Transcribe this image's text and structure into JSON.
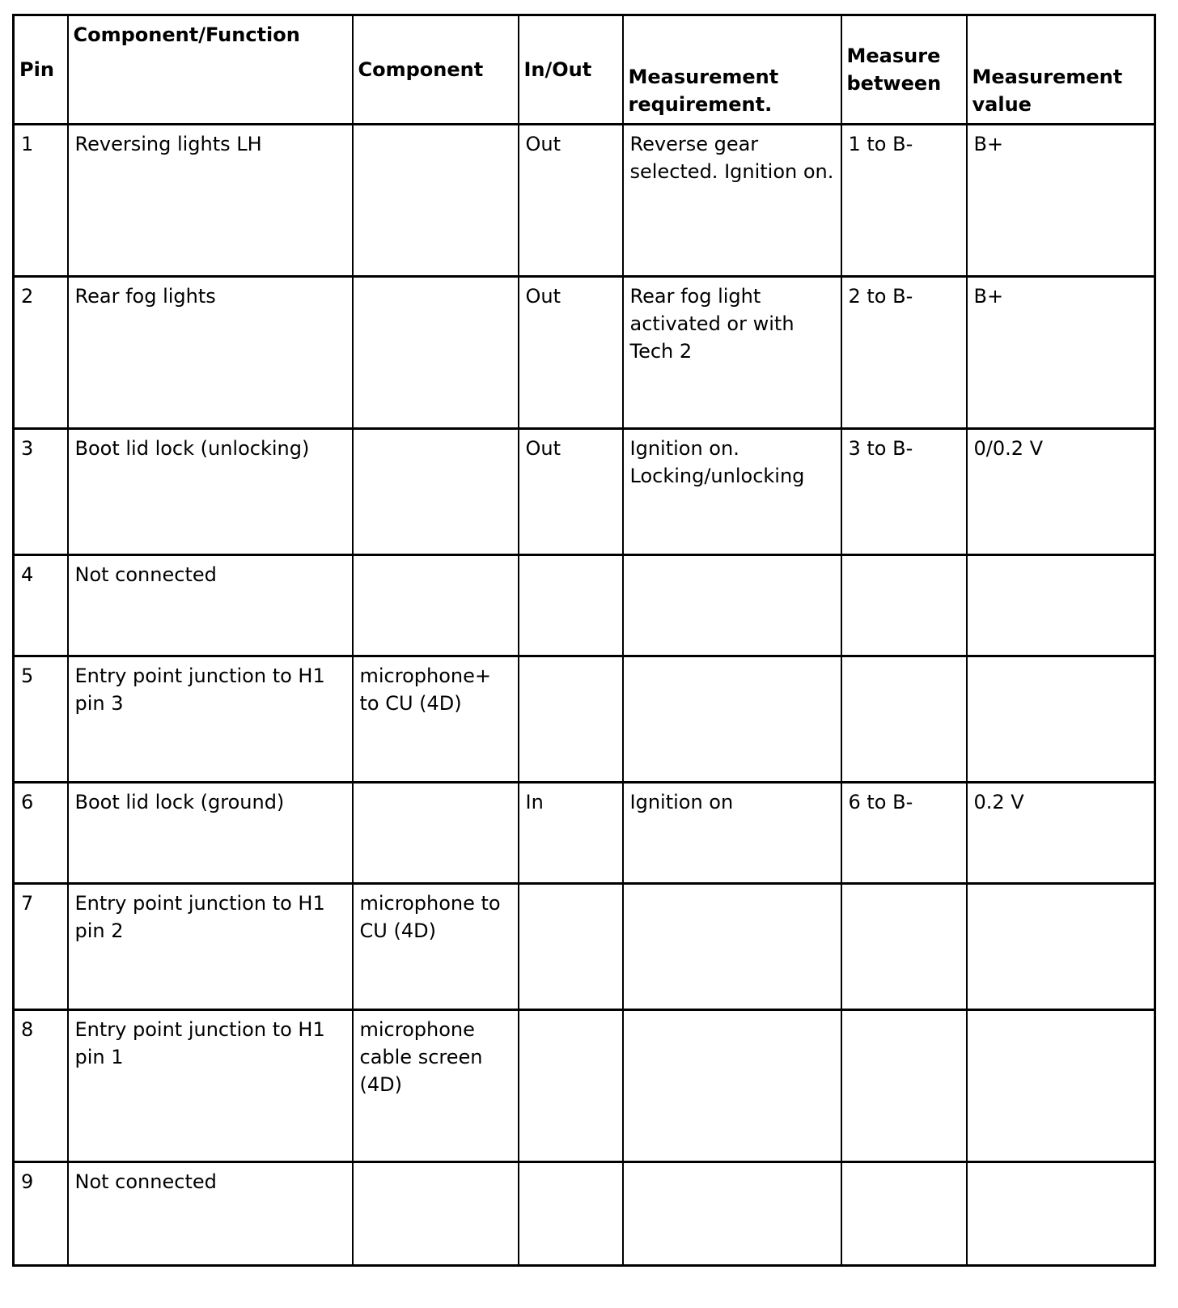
{
  "table": {
    "headers": [
      "Pin",
      "Component/Function",
      "Component",
      "In/Out",
      "Measurement requirement.",
      "Measure between",
      "Measurement value"
    ],
    "rows": [
      [
        "1",
        "Reversing lights LH",
        "",
        "Out",
        "Reverse gear selected. Ignition on.",
        "1 to B-",
        "B+"
      ],
      [
        "2",
        "Rear fog lights",
        "",
        "Out",
        "Rear fog light activated or with Tech 2",
        "2 to B-",
        "B+"
      ],
      [
        "3",
        "Boot lid lock (unlocking)",
        "",
        "Out",
        "Ignition on. Locking/unlocking",
        "3 to B-",
        "0/0.2 V"
      ],
      [
        "4",
        "Not connected",
        "",
        "",
        "",
        "",
        ""
      ],
      [
        "5",
        "Entry point junction to H1 pin 3",
        "microphone+ to CU (4D)",
        "",
        "",
        "",
        ""
      ],
      [
        "6",
        "Boot lid lock (ground)",
        "",
        "In",
        "Ignition on",
        "6 to B-",
        "0.2 V"
      ],
      [
        "7",
        "Entry point junction to H1 pin 2",
        "microphone to CU (4D)",
        "",
        "",
        "",
        ""
      ],
      [
        "8",
        "Entry point junction to H1 pin 1",
        "microphone cable screen (4D)",
        "",
        "",
        "",
        ""
      ],
      [
        "9",
        "Not connected",
        "",
        "",
        "",
        "",
        ""
      ]
    ]
  }
}
